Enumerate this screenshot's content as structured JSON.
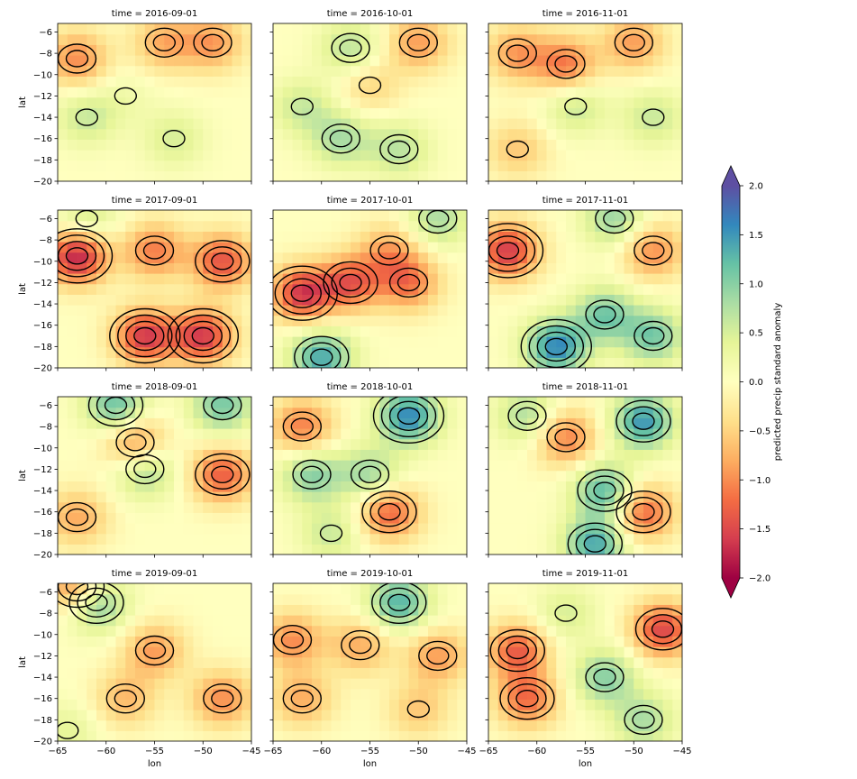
{
  "chart_data": {
    "type": "heatmap",
    "panel_titles": [
      "time = 2016-09-01",
      "time = 2016-10-01",
      "time = 2016-11-01",
      "time = 2017-09-01",
      "time = 2017-10-01",
      "time = 2017-11-01",
      "time = 2018-09-01",
      "time = 2018-10-01",
      "time = 2018-11-01",
      "time = 2019-09-01",
      "time = 2019-10-01",
      "time = 2019-11-01"
    ],
    "xlabel": "lon",
    "ylabel": "lat",
    "xlim": [
      -65,
      -45
    ],
    "ylim": [
      -20,
      -5.2
    ],
    "x_ticks": [
      -65,
      -60,
      -55,
      -50,
      -45
    ],
    "x_tick_labels": [
      "−65",
      "−60",
      "−55",
      "−50",
      "−45"
    ],
    "y_ticks": [
      -6,
      -8,
      -10,
      -12,
      -14,
      -16,
      -18,
      -20
    ],
    "y_tick_labels": [
      "−6",
      "−8",
      "−10",
      "−12",
      "−14",
      "−16",
      "−18",
      "−20"
    ],
    "colorbar": {
      "label": "predicted precip standard anomaly",
      "range": [
        -2.0,
        2.0
      ],
      "ticks": [
        2.0,
        1.5,
        1.0,
        0.5,
        0.0,
        -0.5,
        -1.0,
        -1.5,
        -2.0
      ],
      "tick_labels": [
        "2.0",
        "1.5",
        "1.0",
        "0.5",
        "0.0",
        "−0.5",
        "−1.0",
        "−1.5",
        "−2.0"
      ],
      "extend": "both",
      "colormap": "Spectral"
    },
    "grid": false,
    "panels": [
      {
        "time": "2016-09-01",
        "anomalies": [
          {
            "lon": -63,
            "lat": -8.5,
            "value": -1.0
          },
          {
            "lon": -54,
            "lat": -7,
            "value": -0.8
          },
          {
            "lon": -49,
            "lat": -7,
            "value": -0.9
          },
          {
            "lon": -62,
            "lat": -14,
            "value": 0.6
          },
          {
            "lon": -53,
            "lat": -16,
            "value": 0.5
          },
          {
            "lon": -58,
            "lat": -12,
            "value": 0.2
          }
        ]
      },
      {
        "time": "2016-10-01",
        "anomalies": [
          {
            "lon": -57,
            "lat": -7.5,
            "value": 0.7
          },
          {
            "lon": -50,
            "lat": -7,
            "value": -0.9
          },
          {
            "lon": -62,
            "lat": -13,
            "value": 0.6
          },
          {
            "lon": -58,
            "lat": -16,
            "value": 0.8
          },
          {
            "lon": -52,
            "lat": -17,
            "value": 0.7
          },
          {
            "lon": -55,
            "lat": -11,
            "value": -0.5
          }
        ]
      },
      {
        "time": "2016-11-01",
        "anomalies": [
          {
            "lon": -62,
            "lat": -8,
            "value": -0.9
          },
          {
            "lon": -57,
            "lat": -9,
            "value": -1.1
          },
          {
            "lon": -50,
            "lat": -7,
            "value": -0.9
          },
          {
            "lon": -56,
            "lat": -13,
            "value": 0.6
          },
          {
            "lon": -48,
            "lat": -14,
            "value": 0.6
          },
          {
            "lon": -62,
            "lat": -17,
            "value": -0.6
          }
        ]
      },
      {
        "time": "2017-09-01",
        "anomalies": [
          {
            "lon": -63,
            "lat": -9.5,
            "value": -1.8
          },
          {
            "lon": -56,
            "lat": -17,
            "value": -1.6
          },
          {
            "lon": -50,
            "lat": -17,
            "value": -1.6
          },
          {
            "lon": -48,
            "lat": -10,
            "value": -1.4
          },
          {
            "lon": -55,
            "lat": -9,
            "value": -1.1
          },
          {
            "lon": -62,
            "lat": -6,
            "value": 0.6
          }
        ]
      },
      {
        "time": "2017-10-01",
        "anomalies": [
          {
            "lon": -62,
            "lat": -13,
            "value": -1.6
          },
          {
            "lon": -57,
            "lat": -12,
            "value": -1.3
          },
          {
            "lon": -51,
            "lat": -12,
            "value": -1.1
          },
          {
            "lon": -60,
            "lat": -19,
            "value": 1.4
          },
          {
            "lon": -48,
            "lat": -6,
            "value": 0.8
          },
          {
            "lon": -53,
            "lat": -9,
            "value": -0.8
          }
        ]
      },
      {
        "time": "2017-11-01",
        "anomalies": [
          {
            "lon": -63,
            "lat": -9,
            "value": -1.6
          },
          {
            "lon": -48,
            "lat": -9,
            "value": -1.0
          },
          {
            "lon": -58,
            "lat": -18,
            "value": 1.6
          },
          {
            "lon": -53,
            "lat": -15,
            "value": 1.1
          },
          {
            "lon": -48,
            "lat": -17,
            "value": 1.1
          },
          {
            "lon": -52,
            "lat": -6,
            "value": 0.9
          }
        ]
      },
      {
        "time": "2018-09-01",
        "anomalies": [
          {
            "lon": -59,
            "lat": -6,
            "value": 1.2
          },
          {
            "lon": -48,
            "lat": -6,
            "value": 1.1
          },
          {
            "lon": -57,
            "lat": -9.5,
            "value": -1.1
          },
          {
            "lon": -48,
            "lat": -12.5,
            "value": -1.3
          },
          {
            "lon": -56,
            "lat": -12,
            "value": 0.9
          },
          {
            "lon": -63,
            "lat": -16.5,
            "value": -0.8
          }
        ]
      },
      {
        "time": "2018-10-01",
        "anomalies": [
          {
            "lon": -62,
            "lat": -8,
            "value": -1.1
          },
          {
            "lon": -51,
            "lat": -7,
            "value": 1.6
          },
          {
            "lon": -61,
            "lat": -12.5,
            "value": 1.0
          },
          {
            "lon": -55,
            "lat": -12.5,
            "value": 0.9
          },
          {
            "lon": -53,
            "lat": -16,
            "value": -1.3
          },
          {
            "lon": -59,
            "lat": -18,
            "value": 0.6
          }
        ]
      },
      {
        "time": "2018-11-01",
        "anomalies": [
          {
            "lon": -61,
            "lat": -7,
            "value": 0.8
          },
          {
            "lon": -57,
            "lat": -9,
            "value": -1.1
          },
          {
            "lon": -53,
            "lat": -14,
            "value": 1.3
          },
          {
            "lon": -49,
            "lat": -7.5,
            "value": 1.5
          },
          {
            "lon": -49,
            "lat": -16,
            "value": -1.3
          },
          {
            "lon": -54,
            "lat": -19,
            "value": 1.4
          }
        ]
      },
      {
        "time": "2019-09-01",
        "anomalies": [
          {
            "lon": -61,
            "lat": -7,
            "value": 1.2
          },
          {
            "lon": -55,
            "lat": -11.5,
            "value": -0.9
          },
          {
            "lon": -48,
            "lat": -16,
            "value": -1.0
          },
          {
            "lon": -63,
            "lat": -5.5,
            "value": -1.2
          },
          {
            "lon": -58,
            "lat": -16,
            "value": -0.7
          },
          {
            "lon": -64,
            "lat": -19,
            "value": 0.4
          }
        ]
      },
      {
        "time": "2019-10-01",
        "anomalies": [
          {
            "lon": -52,
            "lat": -7,
            "value": 1.3
          },
          {
            "lon": -63,
            "lat": -10.5,
            "value": -1.0
          },
          {
            "lon": -56,
            "lat": -11,
            "value": -0.8
          },
          {
            "lon": -48,
            "lat": -12,
            "value": -0.9
          },
          {
            "lon": -62,
            "lat": -16,
            "value": -0.8
          },
          {
            "lon": -50,
            "lat": -17,
            "value": -0.6
          }
        ]
      },
      {
        "time": "2019-11-01",
        "anomalies": [
          {
            "lon": -62,
            "lat": -11.5,
            "value": -1.3
          },
          {
            "lon": -61,
            "lat": -16,
            "value": -1.2
          },
          {
            "lon": -47,
            "lat": -9.5,
            "value": -1.5
          },
          {
            "lon": -53,
            "lat": -14,
            "value": 1.0
          },
          {
            "lon": -49,
            "lat": -18,
            "value": 0.8
          },
          {
            "lon": -57,
            "lat": -8,
            "value": 0.5
          }
        ]
      }
    ]
  }
}
